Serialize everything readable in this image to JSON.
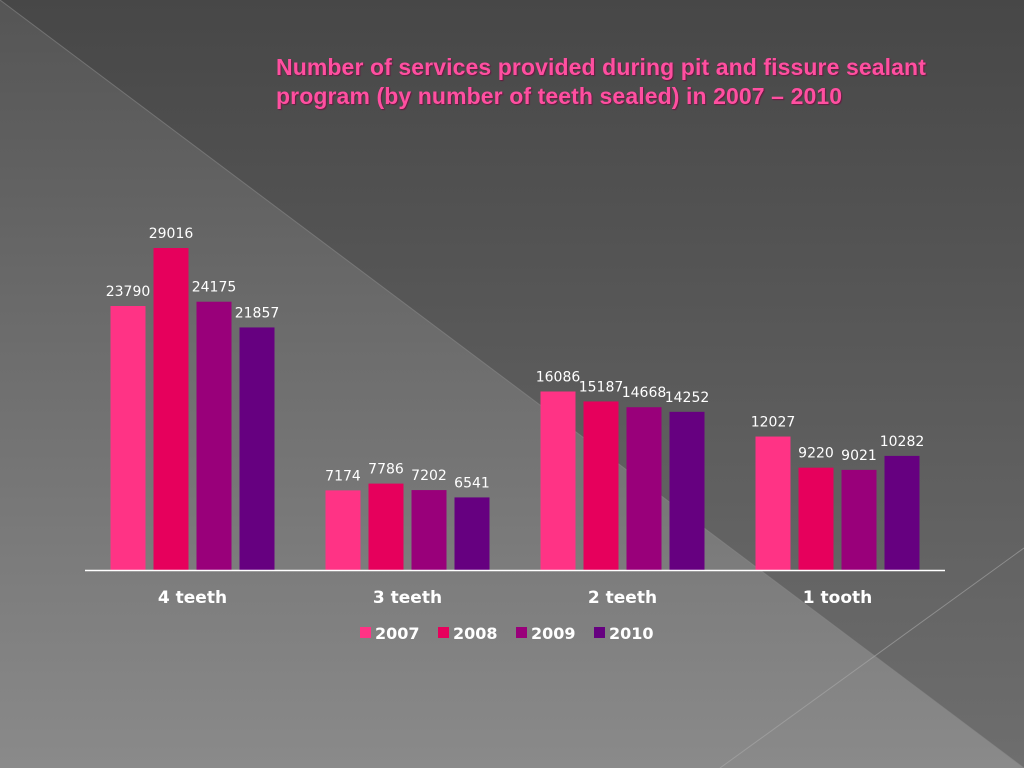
{
  "slide": {
    "title": "Number of services provided during pit and fissure sealant program (by number of teeth sealed) in 2007 – 2010",
    "background_colors": {
      "dark": "#4a4a4a",
      "mid": "#5e5e5e",
      "light": "#7a7a7a",
      "lightest": "#8a8a8a"
    }
  },
  "chart_data": {
    "type": "bar",
    "title": "Number of services provided during pit and fissure sealant program (by number of teeth sealed) in 2007 – 2010",
    "xlabel": "",
    "ylabel": "",
    "categories": [
      "4 teeth",
      "3 teeth",
      "2 teeth",
      "1 tooth"
    ],
    "series": [
      {
        "name": "2007",
        "color": "#ff3385",
        "values": [
          23790,
          7174,
          16086,
          12027
        ]
      },
      {
        "name": "2008",
        "color": "#e6005c",
        "values": [
          29016,
          7786,
          15187,
          9220
        ]
      },
      {
        "name": "2009",
        "color": "#99007a",
        "values": [
          24175,
          7202,
          14668,
          9021
        ]
      },
      {
        "name": "2010",
        "color": "#660080",
        "values": [
          21857,
          6541,
          14252,
          10282
        ]
      }
    ],
    "ylim": [
      0,
      29016
    ],
    "grid": false,
    "y_axis_visible": false,
    "data_labels": true,
    "legend": "bottom"
  }
}
